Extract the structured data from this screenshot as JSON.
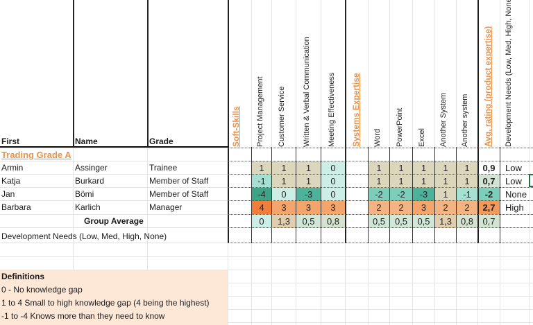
{
  "headers": {
    "first": "First",
    "name": "Name",
    "grade": "Grade",
    "soft_skills": "Soft-Skills",
    "soft_skill_cols": [
      "Project Management",
      "Customer Service",
      "Written & Verbal Communication",
      "Meeting Effectiveness"
    ],
    "systems_expertise": "Systems Expertise",
    "system_cols": [
      "Word",
      "PowerPoint",
      "Excel",
      "Another System",
      "Another system"
    ],
    "avg_rating": "Avg. rating (product expertise)",
    "dev_needs": "Development Needs (Low, Med, High, None)"
  },
  "section_title": "Trading Grade A",
  "rows": [
    {
      "first": "Armin",
      "name": "Assinger",
      "grade": "Trainee",
      "soft": [
        "1",
        "1",
        "1",
        "0"
      ],
      "systems": [
        "1",
        "1",
        "1",
        "1",
        "1"
      ],
      "avg": "0,9",
      "need": "Low"
    },
    {
      "first": "Katja",
      "name": "Burkard",
      "grade": "Member of Staff",
      "soft": [
        "-1",
        "1",
        "1",
        "0"
      ],
      "systems": [
        "1",
        "1",
        "1",
        "1",
        "1"
      ],
      "avg": "0,7",
      "need": "Low"
    },
    {
      "first": "Jan",
      "name": "Bömi",
      "grade": "Member of Staff",
      "soft": [
        "-4",
        "0",
        "-3",
        "0"
      ],
      "systems": [
        "-2",
        "-2",
        "-3",
        "1",
        "-1"
      ],
      "avg": "-2",
      "need": "None"
    },
    {
      "first": "Barbara",
      "name": "Karlich",
      "grade": "Manager",
      "soft": [
        "4",
        "3",
        "3",
        "3"
      ],
      "systems": [
        "2",
        "2",
        "3",
        "2",
        "2"
      ],
      "avg": "2,7",
      "need": "High"
    }
  ],
  "group_average": {
    "label": "Group Average",
    "soft": [
      "0",
      "1,3",
      "0,5",
      "0,8"
    ],
    "systems": [
      "0,5",
      "0,5",
      "0,5",
      "1,3",
      "0,8"
    ],
    "avg": "0,7"
  },
  "dev_needs_row_label": "Development Needs (Low, Med, High, None)",
  "definitions": {
    "title": "Definitions",
    "items": [
      "0 - No knowledge gap",
      "1 to 4 Small to high knowledge gap (4 being the highest)",
      "-1 to -4 Knows more than they need to know"
    ]
  },
  "colors": {
    "v-4": "#3da487",
    "v-3": "#4cb39a",
    "v-2": "#7ccdb9",
    "v-1": "#a6e0d2",
    "v0": "#cdeee6",
    "v0.5": "#d2e6d8",
    "v0.7": "#d4e4d2",
    "v0.8": "#d6e2cf",
    "v1": "#dbd7bd",
    "v1.3": "#dfcfb0",
    "v2": "#f4b383",
    "v2.7": "#f29a5e",
    "v3": "#f3a56c",
    "v4": "#f07e3a",
    "accent": "#e8924a",
    "definitions_bg": "#fde8d8"
  }
}
